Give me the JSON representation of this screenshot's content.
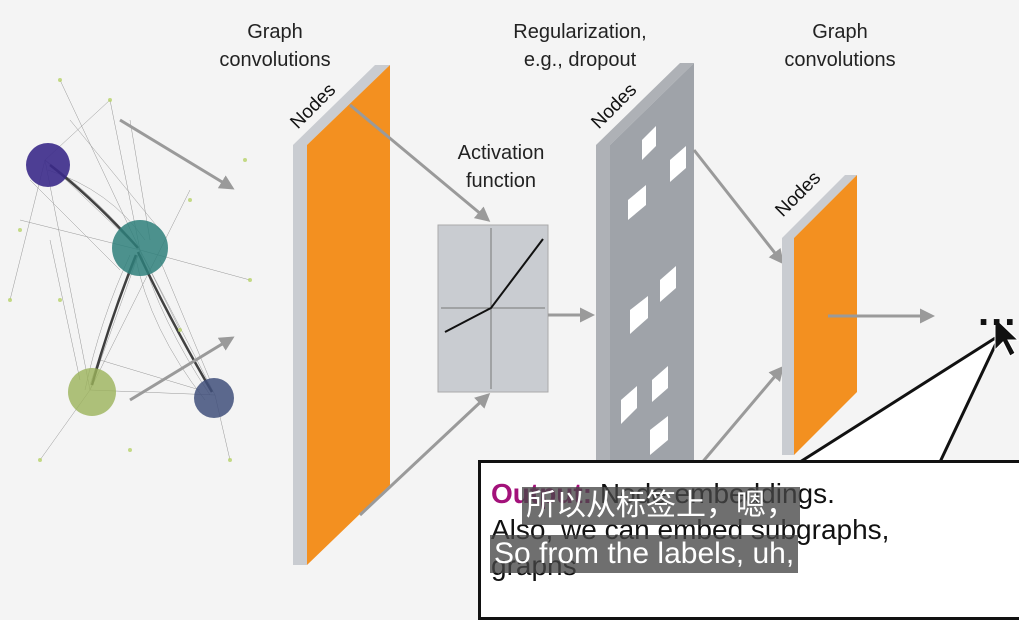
{
  "labels": {
    "graph_conv_1": "Graph\nconvolutions",
    "regularization": "Regularization,\ne.g., dropout",
    "graph_conv_2": "Graph\nconvolutions",
    "activation": "Activation\nfunction",
    "nodes_1": "Nodes",
    "nodes_2": "Nodes",
    "nodes_3": "Nodes",
    "ellipsis": "..."
  },
  "output": {
    "keyword": "Output:",
    "line1": "Node embeddings.",
    "line2": "Also, we can embed subgraphs,",
    "line3": "graphs"
  },
  "subtitles": {
    "chinese": "所以从标签上，嗯，",
    "english": "So from the labels, uh,"
  },
  "colors": {
    "layer": "#f39020",
    "panel": "#c9ccd1",
    "arrow": "#9a9a9a"
  }
}
